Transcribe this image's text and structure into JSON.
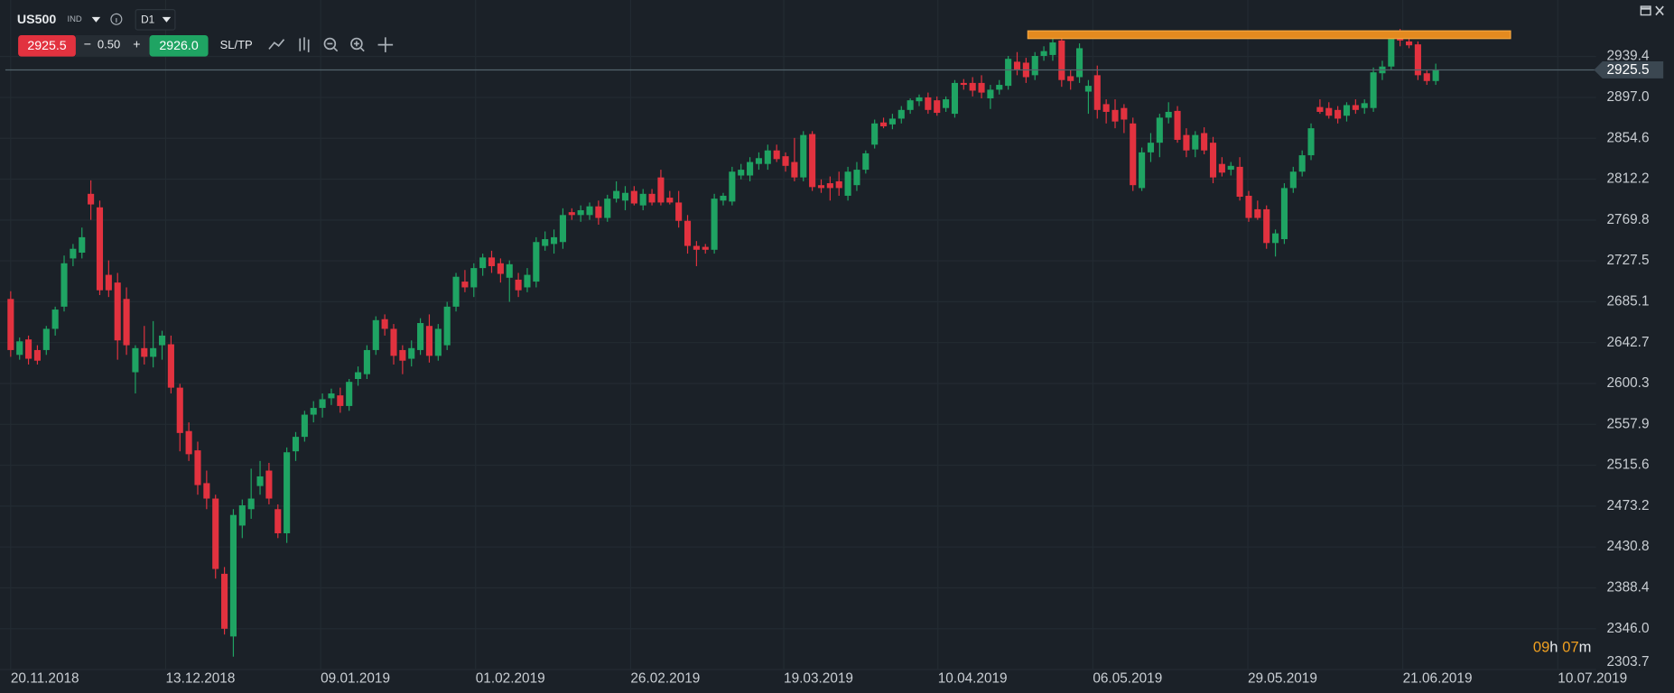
{
  "toolbar": {
    "symbol": "US500",
    "class": "IND",
    "timeframe": "D1",
    "sell": "2925.5",
    "spread": "0.50",
    "buy": "2926.0",
    "sltp": "SL/TP"
  },
  "countdown": {
    "hours": "09",
    "hours_unit": "h",
    "minutes": "07",
    "minutes_unit": "m"
  },
  "chart_data": {
    "type": "candlestick",
    "colors": {
      "up": "#1fa463",
      "down": "#e2323f",
      "zone": "#e48a1f"
    },
    "grid": true,
    "last_price": 2925.5,
    "resistance_zone": {
      "low": 2958,
      "high": 2966,
      "start": 114.2,
      "end": 168.4
    },
    "xlim": [
      -1.2,
      178
    ],
    "xticks": [
      {
        "value": 0,
        "label": "20.11.2018"
      },
      {
        "value": 17.4,
        "label": "13.12.2018"
      },
      {
        "value": 34.8,
        "label": "09.01.2019"
      },
      {
        "value": 52.2,
        "label": "01.02.2019"
      },
      {
        "value": 69.6,
        "label": "26.02.2019"
      },
      {
        "value": 86.8,
        "label": "19.03.2019"
      },
      {
        "value": 104.1,
        "label": "10.04.2019"
      },
      {
        "value": 121.5,
        "label": "06.05.2019"
      },
      {
        "value": 138.9,
        "label": "29.05.2019"
      },
      {
        "value": 156.3,
        "label": "21.06.2019"
      },
      {
        "value": 173.7,
        "label": "10.07.2019"
      }
    ],
    "ylim": [
      2303.7,
      2998
    ],
    "yticks": [
      2303.7,
      {
        "value": 2346,
        "label": "2346.0"
      },
      2388.4,
      2430.8,
      2473.2,
      2515.6,
      2557.9,
      2600.3,
      2642.7,
      2685.1,
      2727.5,
      2769.8,
      2812.2,
      2854.6,
      {
        "value": 2897,
        "label": "2897.0"
      },
      2939.4
    ],
    "ohlc": [
      [
        2688,
        2696,
        2628,
        2635
      ],
      [
        2630,
        2648,
        2625,
        2644
      ],
      [
        2646,
        2650,
        2620,
        2626
      ],
      [
        2635,
        2640,
        2620,
        2624
      ],
      [
        2635,
        2660,
        2630,
        2657
      ],
      [
        2657,
        2680,
        2650,
        2677
      ],
      [
        2680,
        2733,
        2675,
        2725
      ],
      [
        2730,
        2745,
        2722,
        2740
      ],
      [
        2736,
        2762,
        2730,
        2752
      ],
      [
        2797,
        2811,
        2770,
        2786
      ],
      [
        2783,
        2790,
        2692,
        2697
      ],
      [
        2713,
        2728,
        2690,
        2697
      ],
      [
        2705,
        2715,
        2625,
        2645
      ],
      [
        2688,
        2700,
        2630,
        2640
      ],
      [
        2612,
        2640,
        2590,
        2637
      ],
      [
        2637,
        2660,
        2620,
        2628
      ],
      [
        2628,
        2665,
        2617,
        2637
      ],
      [
        2640,
        2655,
        2625,
        2650
      ],
      [
        2641,
        2650,
        2590,
        2596
      ],
      [
        2596,
        2600,
        2530,
        2549
      ],
      [
        2551,
        2560,
        2520,
        2527
      ],
      [
        2531,
        2540,
        2485,
        2495
      ],
      [
        2497,
        2510,
        2470,
        2481
      ],
      [
        2481,
        2485,
        2398,
        2408
      ],
      [
        2403,
        2410,
        2340,
        2346
      ],
      [
        2338,
        2470,
        2317,
        2464
      ],
      [
        2453,
        2480,
        2440,
        2474
      ],
      [
        2470,
        2512,
        2460,
        2481
      ],
      [
        2494,
        2520,
        2485,
        2504
      ],
      [
        2510,
        2518,
        2475,
        2481
      ],
      [
        2470,
        2475,
        2440,
        2445
      ],
      [
        2445,
        2534,
        2435,
        2529
      ],
      [
        2530,
        2550,
        2520,
        2545
      ],
      [
        2545,
        2572,
        2540,
        2568
      ],
      [
        2568,
        2582,
        2560,
        2575
      ],
      [
        2575,
        2590,
        2565,
        2584
      ],
      [
        2585,
        2595,
        2578,
        2590
      ],
      [
        2588,
        2596,
        2570,
        2577
      ],
      [
        2577,
        2605,
        2572,
        2602
      ],
      [
        2605,
        2618,
        2598,
        2612
      ],
      [
        2610,
        2640,
        2605,
        2635
      ],
      [
        2635,
        2670,
        2630,
        2666
      ],
      [
        2667,
        2672,
        2650,
        2657
      ],
      [
        2657,
        2662,
        2620,
        2629
      ],
      [
        2635,
        2640,
        2610,
        2624
      ],
      [
        2626,
        2645,
        2618,
        2637
      ],
      [
        2635,
        2668,
        2630,
        2663
      ],
      [
        2660,
        2672,
        2622,
        2629
      ],
      [
        2629,
        2662,
        2624,
        2657
      ],
      [
        2640,
        2685,
        2635,
        2680
      ],
      [
        2680,
        2715,
        2675,
        2711
      ],
      [
        2706,
        2718,
        2695,
        2700
      ],
      [
        2700,
        2725,
        2690,
        2720
      ],
      [
        2720,
        2735,
        2712,
        2731
      ],
      [
        2731,
        2738,
        2715,
        2722
      ],
      [
        2725,
        2730,
        2705,
        2714
      ],
      [
        2710,
        2728,
        2685,
        2724
      ],
      [
        2708,
        2715,
        2690,
        2697
      ],
      [
        2700,
        2720,
        2695,
        2713
      ],
      [
        2706,
        2752,
        2700,
        2747
      ],
      [
        2743,
        2758,
        2738,
        2750
      ],
      [
        2745,
        2760,
        2735,
        2752
      ],
      [
        2747,
        2782,
        2740,
        2775
      ],
      [
        2778,
        2782,
        2770,
        2775
      ],
      [
        2775,
        2785,
        2768,
        2780
      ],
      [
        2775,
        2788,
        2770,
        2784
      ],
      [
        2784,
        2790,
        2765,
        2772
      ],
      [
        2772,
        2796,
        2768,
        2792
      ],
      [
        2792,
        2810,
        2788,
        2800
      ],
      [
        2790,
        2805,
        2780,
        2798
      ],
      [
        2800,
        2805,
        2785,
        2787
      ],
      [
        2785,
        2802,
        2780,
        2797
      ],
      [
        2797,
        2802,
        2785,
        2788
      ],
      [
        2814,
        2822,
        2785,
        2788
      ],
      [
        2793,
        2800,
        2786,
        2788
      ],
      [
        2788,
        2800,
        2762,
        2769
      ],
      [
        2769,
        2775,
        2735,
        2743
      ],
      [
        2743,
        2748,
        2722,
        2739
      ],
      [
        2742,
        2745,
        2735,
        2739
      ],
      [
        2739,
        2797,
        2735,
        2792
      ],
      [
        2790,
        2798,
        2785,
        2795
      ],
      [
        2789,
        2825,
        2785,
        2820
      ],
      [
        2816,
        2828,
        2812,
        2822
      ],
      [
        2816,
        2835,
        2810,
        2830
      ],
      [
        2828,
        2840,
        2822,
        2834
      ],
      [
        2828,
        2848,
        2822,
        2842
      ],
      [
        2842,
        2848,
        2830,
        2833
      ],
      [
        2836,
        2840,
        2820,
        2826
      ],
      [
        2830,
        2855,
        2810,
        2814
      ],
      [
        2814,
        2862,
        2810,
        2858
      ],
      [
        2859,
        2862,
        2800,
        2804
      ],
      [
        2806,
        2812,
        2798,
        2803
      ],
      [
        2808,
        2815,
        2790,
        2803
      ],
      [
        2810,
        2820,
        2795,
        2803
      ],
      [
        2795,
        2825,
        2790,
        2820
      ],
      [
        2806,
        2830,
        2800,
        2822
      ],
      [
        2822,
        2842,
        2818,
        2839
      ],
      [
        2848,
        2874,
        2844,
        2870
      ],
      [
        2871,
        2876,
        2865,
        2867
      ],
      [
        2869,
        2880,
        2864,
        2875
      ],
      [
        2875,
        2888,
        2870,
        2884
      ],
      [
        2884,
        2896,
        2880,
        2894
      ],
      [
        2893,
        2900,
        2888,
        2897
      ],
      [
        2897,
        2902,
        2880,
        2884
      ],
      [
        2894,
        2898,
        2878,
        2881
      ],
      [
        2886,
        2898,
        2882,
        2895
      ],
      [
        2880,
        2915,
        2876,
        2912
      ],
      [
        2912,
        2916,
        2905,
        2910
      ],
      [
        2912,
        2918,
        2898,
        2904
      ],
      [
        2912,
        2920,
        2896,
        2902
      ],
      [
        2896,
        2910,
        2885,
        2905
      ],
      [
        2905,
        2915,
        2900,
        2910
      ],
      [
        2909,
        2940,
        2905,
        2937
      ],
      [
        2934,
        2944,
        2920,
        2926
      ],
      [
        2933,
        2938,
        2912,
        2918
      ],
      [
        2920,
        2944,
        2915,
        2940
      ],
      [
        2940,
        2950,
        2935,
        2945
      ],
      [
        2941,
        2960,
        2935,
        2954
      ],
      [
        2956,
        2960,
        2908,
        2915
      ],
      [
        2919,
        2925,
        2905,
        2914
      ],
      [
        2918,
        2953,
        2912,
        2948
      ],
      [
        2903,
        2915,
        2880,
        2909
      ],
      [
        2920,
        2930,
        2875,
        2884
      ],
      [
        2890,
        2895,
        2870,
        2882
      ],
      [
        2884,
        2895,
        2865,
        2872
      ],
      [
        2886,
        2890,
        2860,
        2874
      ],
      [
        2870,
        2876,
        2800,
        2806
      ],
      [
        2803,
        2845,
        2800,
        2840
      ],
      [
        2840,
        2860,
        2830,
        2850
      ],
      [
        2850,
        2880,
        2835,
        2876
      ],
      [
        2876,
        2892,
        2870,
        2882
      ],
      [
        2883,
        2888,
        2850,
        2853
      ],
      [
        2858,
        2865,
        2835,
        2842
      ],
      [
        2843,
        2862,
        2835,
        2858
      ],
      [
        2860,
        2866,
        2838,
        2842
      ],
      [
        2850,
        2856,
        2808,
        2814
      ],
      [
        2828,
        2835,
        2815,
        2819
      ],
      [
        2822,
        2830,
        2816,
        2826
      ],
      [
        2825,
        2835,
        2790,
        2794
      ],
      [
        2795,
        2800,
        2768,
        2772
      ],
      [
        2781,
        2790,
        2770,
        2772
      ],
      [
        2781,
        2785,
        2740,
        2746
      ],
      [
        2746,
        2760,
        2732,
        2756
      ],
      [
        2750,
        2808,
        2745,
        2803
      ],
      [
        2803,
        2825,
        2798,
        2820
      ],
      [
        2820,
        2842,
        2815,
        2837
      ],
      [
        2837,
        2870,
        2832,
        2865
      ],
      [
        2887,
        2895,
        2880,
        2882
      ],
      [
        2886,
        2892,
        2875,
        2878
      ],
      [
        2884,
        2888,
        2870,
        2875
      ],
      [
        2878,
        2892,
        2872,
        2889
      ],
      [
        2889,
        2895,
        2880,
        2884
      ],
      [
        2886,
        2895,
        2880,
        2891
      ],
      [
        2886,
        2928,
        2882,
        2923
      ],
      [
        2922,
        2935,
        2915,
        2929
      ],
      [
        2929,
        2965,
        2925,
        2960
      ],
      [
        2958,
        2968,
        2950,
        2956
      ],
      [
        2955,
        2960,
        2948,
        2951
      ],
      [
        2952,
        2955,
        2915,
        2920
      ],
      [
        2922,
        2925,
        2910,
        2914
      ],
      [
        2914,
        2932,
        2910,
        2926
      ]
    ]
  }
}
